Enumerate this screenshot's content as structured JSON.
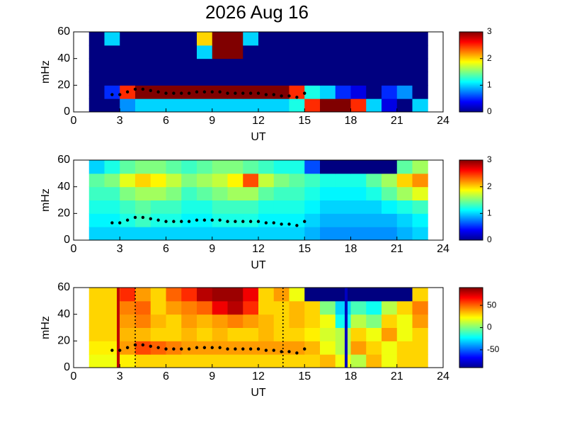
{
  "chart_data": [
    {
      "type": "heatmap",
      "title": "2026 Aug 16",
      "xlabel": "UT",
      "ylabel": "mHz",
      "colormap": "jet",
      "xlim": [
        0,
        24
      ],
      "xticks": [
        0,
        3,
        6,
        9,
        12,
        15,
        18,
        21,
        24
      ],
      "ylim": [
        0,
        60
      ],
      "yticks": [
        0,
        20,
        40,
        60
      ],
      "zlim": [
        0,
        3
      ],
      "zticks": [
        0,
        1,
        2,
        3
      ],
      "xbins": [
        1,
        2,
        3,
        4,
        5,
        6,
        7,
        8,
        9,
        10,
        11,
        12,
        13,
        14,
        15,
        16,
        17,
        18,
        19,
        20,
        21,
        22,
        23
      ],
      "ybins": [
        0,
        10,
        20,
        30,
        40,
        50,
        60
      ],
      "z": [
        [
          0,
          0,
          0.8,
          1,
          1,
          1,
          1,
          1,
          1,
          1,
          1,
          1,
          1,
          1.2,
          2.5,
          3,
          3,
          2.5,
          1,
          0.3,
          0,
          1
        ],
        [
          0,
          0.5,
          2.5,
          3,
          3,
          3,
          3,
          3,
          3,
          3,
          3,
          3,
          3,
          2.5,
          1.2,
          1,
          0.5,
          0.3,
          0,
          0.5,
          0.8,
          0
        ],
        [
          0,
          0,
          0,
          0,
          0,
          0,
          0,
          0,
          0,
          0,
          0,
          0,
          0,
          0,
          0,
          0,
          0,
          0,
          0,
          0,
          0,
          0
        ],
        [
          0,
          0,
          0,
          0,
          0,
          0,
          0,
          0,
          0,
          0,
          0,
          0,
          0,
          0,
          0,
          0,
          0,
          0,
          0,
          0,
          0,
          0
        ],
        [
          0,
          0,
          0,
          0,
          0,
          0,
          0,
          1,
          3,
          3,
          0,
          0,
          0,
          0,
          0,
          0,
          0,
          0,
          0,
          0,
          0,
          0
        ],
        [
          0,
          1,
          0,
          0,
          0,
          0,
          0,
          2,
          3,
          3,
          1,
          0,
          0,
          0,
          0,
          0,
          0,
          0,
          0,
          0,
          0,
          0
        ]
      ],
      "trace": {
        "color": "#000000",
        "x": [
          2.5,
          3,
          3.5,
          4,
          4.5,
          5,
          5.5,
          6,
          6.5,
          7,
          7.5,
          8,
          8.5,
          9,
          9.5,
          10,
          10.5,
          11,
          11.5,
          12,
          12.5,
          13,
          13.5,
          14,
          14.5,
          15
        ],
        "values": [
          13,
          13,
          15,
          17,
          17,
          16,
          15,
          14,
          14,
          14,
          14,
          15,
          15,
          15,
          15,
          14,
          14,
          14,
          14,
          14,
          13,
          13,
          12,
          12,
          11,
          14
        ]
      }
    },
    {
      "type": "heatmap",
      "xlabel": "UT",
      "ylabel": "mHz",
      "colormap": "jet",
      "xlim": [
        0,
        24
      ],
      "xticks": [
        0,
        3,
        6,
        9,
        12,
        15,
        18,
        21,
        24
      ],
      "ylim": [
        0,
        60
      ],
      "yticks": [
        0,
        20,
        40,
        60
      ],
      "zlim": [
        0,
        3
      ],
      "zticks": [
        0,
        1,
        2,
        3
      ],
      "xbins": [
        1,
        2,
        3,
        4,
        5,
        6,
        7,
        8,
        9,
        10,
        11,
        12,
        13,
        14,
        15,
        16,
        17,
        18,
        19,
        20,
        21,
        22,
        23
      ],
      "ybins": [
        0,
        10,
        20,
        30,
        40,
        50,
        60
      ],
      "z": [
        [
          1,
          1,
          1,
          1,
          1,
          1,
          1,
          1,
          1,
          1,
          1,
          1,
          1,
          1,
          0.9,
          0.8,
          0.8,
          0.8,
          0.8,
          0.8,
          0.9,
          1
        ],
        [
          1.1,
          1.1,
          1.2,
          1.3,
          1.2,
          1.2,
          1.1,
          1.1,
          1.2,
          1.2,
          1.2,
          1.1,
          1.1,
          1.1,
          1,
          0.9,
          0.9,
          0.9,
          0.9,
          0.9,
          1,
          1.1
        ],
        [
          1.2,
          1.2,
          1.3,
          1.4,
          1.3,
          1.3,
          1.2,
          1.2,
          1.3,
          1.3,
          1.3,
          1.2,
          1.2,
          1.2,
          1.1,
          1,
          1,
          1,
          1,
          1.1,
          1.2,
          1.3
        ],
        [
          1.3,
          1.3,
          1.5,
          1.6,
          1.6,
          1.5,
          1.3,
          1.4,
          1.5,
          1.6,
          1.6,
          1.4,
          1.3,
          1.3,
          1.2,
          1.1,
          1.1,
          1.1,
          1.2,
          1.4,
          1.6,
          1.8
        ],
        [
          1.4,
          1.5,
          1.8,
          2,
          1.9,
          1.7,
          1.5,
          1.6,
          1.7,
          1.9,
          2.4,
          1.7,
          1.5,
          1.4,
          1.3,
          1.2,
          1.2,
          1.2,
          1.4,
          1.6,
          2,
          2.2
        ],
        [
          1,
          1.2,
          1.4,
          1.5,
          1.5,
          1.4,
          1.3,
          1.4,
          1.5,
          1.5,
          1.4,
          1.3,
          1.2,
          1.2,
          0.6,
          0,
          0,
          0,
          0,
          0,
          1.4,
          1.6
        ]
      ],
      "trace": {
        "color": "#000000",
        "x": [
          2.5,
          3,
          3.5,
          4,
          4.5,
          5,
          5.5,
          6,
          6.5,
          7,
          7.5,
          8,
          8.5,
          9,
          9.5,
          10,
          10.5,
          11,
          11.5,
          12,
          12.5,
          13,
          13.5,
          14,
          14.5,
          15
        ],
        "values": [
          13,
          13,
          15,
          17,
          17,
          16,
          15,
          14,
          14,
          14,
          14,
          15,
          15,
          15,
          15,
          14,
          14,
          14,
          14,
          14,
          13,
          13,
          12,
          12,
          11,
          14
        ]
      }
    },
    {
      "type": "heatmap",
      "xlabel": "UT",
      "ylabel": "mHz",
      "colormap": "jet",
      "xlim": [
        0,
        24
      ],
      "xticks": [
        0,
        3,
        6,
        9,
        12,
        15,
        18,
        21,
        24
      ],
      "ylim": [
        0,
        60
      ],
      "yticks": [
        0,
        20,
        40,
        60
      ],
      "zlim": [
        -90,
        90
      ],
      "zticks": [
        -50,
        0,
        50
      ],
      "xbins": [
        1,
        2,
        3,
        4,
        5,
        6,
        7,
        8,
        9,
        10,
        11,
        12,
        13,
        14,
        15,
        16,
        17,
        18,
        19,
        20,
        21,
        22,
        23
      ],
      "ybins": [
        0,
        10,
        20,
        30,
        40,
        50,
        60
      ],
      "z": [
        [
          20,
          20,
          25,
          30,
          30,
          30,
          30,
          30,
          30,
          30,
          30,
          30,
          30,
          30,
          30,
          35,
          20,
          10,
          35,
          20,
          30,
          30
        ],
        [
          25,
          25,
          40,
          55,
          50,
          45,
          40,
          40,
          40,
          40,
          40,
          40,
          40,
          40,
          35,
          20,
          10,
          40,
          30,
          20,
          30,
          30
        ],
        [
          30,
          30,
          35,
          35,
          30,
          30,
          35,
          30,
          35,
          30,
          30,
          35,
          30,
          30,
          25,
          15,
          10,
          30,
          20,
          40,
          20,
          30
        ],
        [
          30,
          30,
          40,
          45,
          35,
          30,
          40,
          35,
          40,
          45,
          40,
          35,
          30,
          35,
          30,
          20,
          -20,
          10,
          0,
          30,
          20,
          40
        ],
        [
          30,
          30,
          45,
          50,
          30,
          40,
          45,
          50,
          70,
          80,
          60,
          30,
          30,
          35,
          30,
          0,
          -30,
          -10,
          -20,
          10,
          30,
          45
        ],
        [
          30,
          30,
          60,
          40,
          30,
          50,
          60,
          80,
          85,
          85,
          70,
          30,
          40,
          20,
          -90,
          -90,
          -90,
          -90,
          -90,
          -90,
          -90,
          30
        ]
      ],
      "trace": {
        "color": "#000000",
        "x": [
          2.5,
          3,
          3.5,
          4,
          4.5,
          5,
          5.5,
          6,
          6.5,
          7,
          7.5,
          8,
          8.5,
          9,
          9.5,
          10,
          10.5,
          11,
          11.5,
          12,
          12.5,
          13,
          13.5,
          14,
          14.5,
          15
        ],
        "values": [
          13,
          13,
          15,
          17,
          17,
          16,
          15,
          14,
          14,
          14,
          14,
          15,
          15,
          15,
          15,
          14,
          14,
          14,
          14,
          14,
          13,
          13,
          12,
          12,
          11,
          14
        ]
      },
      "vlines": [
        {
          "x": 2.9,
          "color": "#c00000",
          "dashed": false
        },
        {
          "x": 4,
          "color": "#000000",
          "dashed": true
        },
        {
          "x": 13.6,
          "color": "#000000",
          "dashed": true
        },
        {
          "x": 17.7,
          "color": "#0000c0",
          "dashed": false
        }
      ]
    }
  ]
}
